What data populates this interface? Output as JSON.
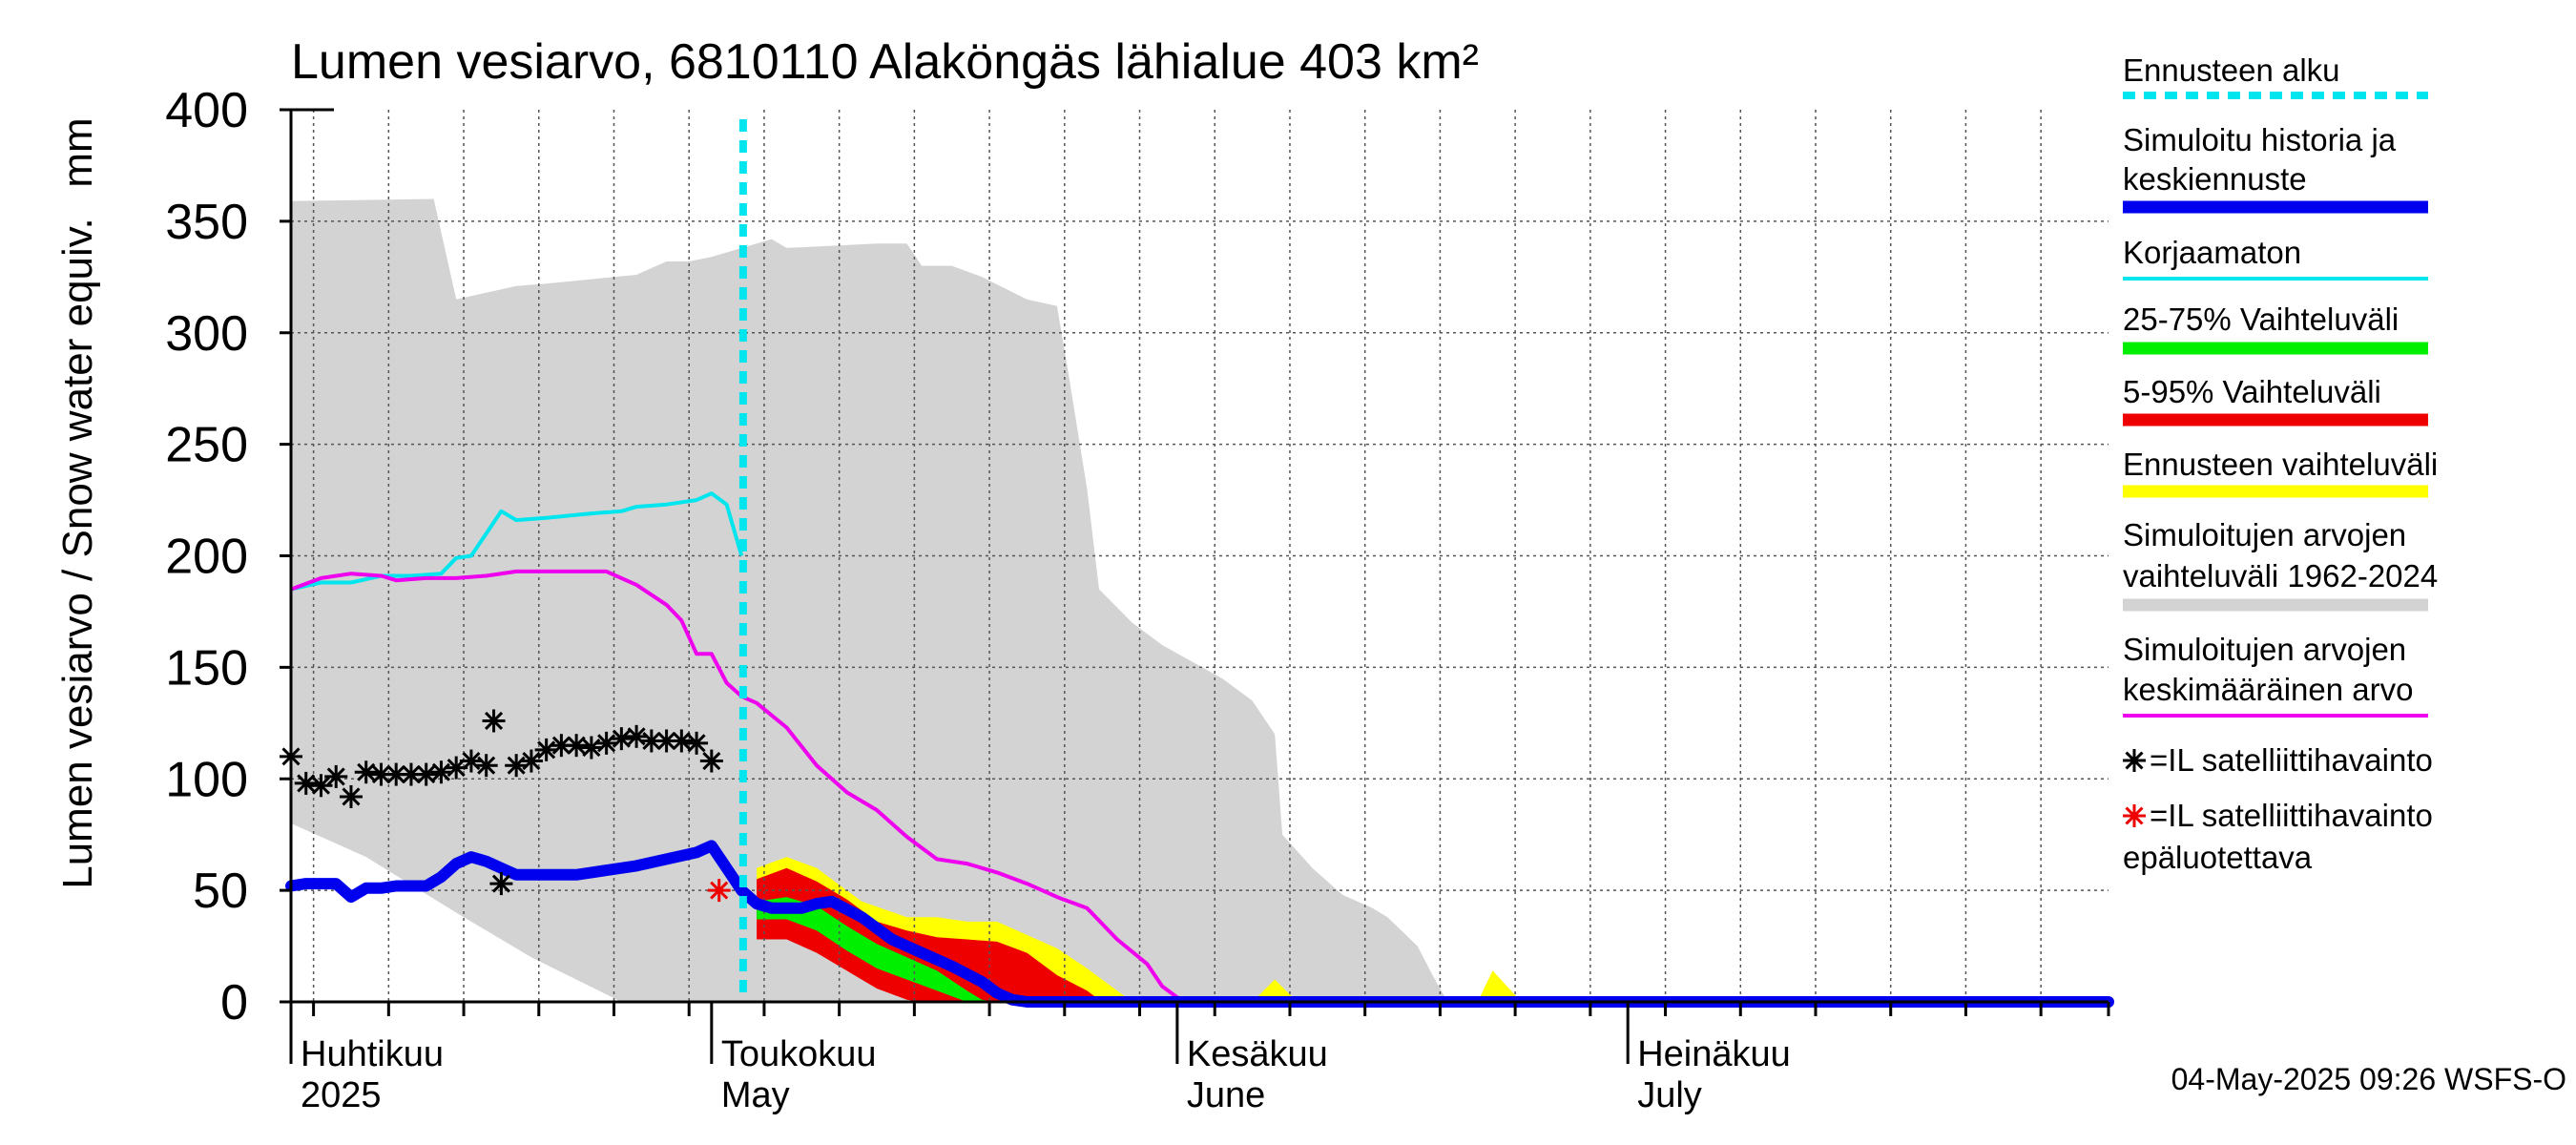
{
  "chart_data": {
    "type": "area",
    "title": "Lumen vesiarvo, 6810110 Alaköngäs lähialue 403 km²",
    "ylabel": "Lumen vesiarvo / Snow water equiv.",
    "yunit": "mm",
    "ylim": [
      0,
      400
    ],
    "yticks": [
      "0",
      "50",
      "100",
      "150",
      "200",
      "250",
      "300",
      "350",
      "400"
    ],
    "xlim_days": [
      0,
      121
    ],
    "month_labels": [
      {
        "day": 0,
        "fi": "Huhtikuu",
        "en": "2025"
      },
      {
        "day": 28,
        "fi": "Toukokuu",
        "en": "May"
      },
      {
        "day": 59,
        "fi": "Kesäkuu",
        "en": "June"
      },
      {
        "day": 89,
        "fi": "Heinäkuu",
        "en": "July"
      }
    ],
    "minor_tick_days": [
      1.5,
      6.5,
      11.5,
      16.5,
      21.5,
      26.5,
      31.5,
      36.5,
      41.5,
      46.5,
      51.5,
      56.5,
      61.5,
      66.5,
      71.5,
      76.5,
      81.5,
      86.5,
      91.5,
      96.5,
      101.5,
      106.5,
      111.5,
      116.5,
      121
    ],
    "forecast_start_day": 30.1,
    "series": {
      "historical_range_upper": [
        [
          0,
          359
        ],
        [
          9.5,
          360
        ],
        [
          11,
          315
        ],
        [
          13,
          318
        ],
        [
          15,
          321
        ],
        [
          17,
          322
        ],
        [
          20,
          324
        ],
        [
          23,
          326
        ],
        [
          25,
          332
        ],
        [
          26.5,
          332
        ],
        [
          28,
          334
        ],
        [
          30,
          338
        ],
        [
          32,
          342
        ],
        [
          33,
          338
        ],
        [
          36,
          339
        ],
        [
          39,
          340
        ],
        [
          41,
          340
        ],
        [
          42,
          330
        ],
        [
          44,
          330
        ],
        [
          46,
          325
        ],
        [
          49,
          315
        ],
        [
          51,
          312
        ],
        [
          51.8,
          280
        ],
        [
          53,
          230
        ],
        [
          53.8,
          185
        ],
        [
          56,
          170
        ],
        [
          58,
          160
        ],
        [
          62,
          145
        ],
        [
          64,
          135
        ],
        [
          65.5,
          120
        ],
        [
          66,
          75
        ],
        [
          68,
          60
        ],
        [
          70,
          48
        ],
        [
          72,
          42
        ],
        [
          73,
          38
        ],
        [
          75,
          25
        ],
        [
          76,
          12
        ],
        [
          77,
          0
        ]
      ],
      "historical_range_lower": [
        [
          0,
          80
        ],
        [
          5,
          65
        ],
        [
          11,
          40
        ],
        [
          16,
          20
        ],
        [
          22,
          0
        ],
        [
          121,
          0
        ]
      ],
      "ennusteen_vaihteluvali_upper": [
        [
          31,
          60
        ],
        [
          33,
          65
        ],
        [
          35,
          60
        ],
        [
          38,
          45
        ],
        [
          41,
          38
        ],
        [
          43,
          38
        ],
        [
          45,
          36
        ],
        [
          47,
          36
        ],
        [
          49,
          30
        ],
        [
          51,
          24
        ],
        [
          53,
          15
        ],
        [
          55,
          5
        ],
        [
          56,
          0
        ]
      ],
      "ennusteen_vaihteluvali_lower": [
        [
          31,
          40
        ],
        [
          34,
          33
        ],
        [
          36,
          25
        ],
        [
          38,
          16
        ],
        [
          40,
          8
        ],
        [
          41,
          5
        ],
        [
          42,
          0
        ],
        [
          56,
          0
        ]
      ],
      "vaihteluvali_5_95_upper": [
        [
          31,
          55
        ],
        [
          33,
          60
        ],
        [
          35,
          54
        ],
        [
          37,
          46
        ],
        [
          39,
          36
        ],
        [
          41,
          32
        ],
        [
          43,
          29
        ],
        [
          45,
          28
        ],
        [
          47,
          27
        ],
        [
          49,
          22
        ],
        [
          51,
          12
        ],
        [
          53,
          5
        ],
        [
          54,
          0
        ]
      ],
      "vaihteluvali_5_95_lower": [
        [
          31,
          28
        ],
        [
          33,
          28
        ],
        [
          35,
          22
        ],
        [
          37,
          14
        ],
        [
          39,
          6
        ],
        [
          41,
          1
        ],
        [
          42,
          0
        ],
        [
          54,
          0
        ]
      ],
      "vaihteluvali_25_75_upper": [
        [
          31,
          45
        ],
        [
          33,
          47
        ],
        [
          35,
          43
        ],
        [
          37,
          34
        ],
        [
          39,
          26
        ],
        [
          41,
          20
        ],
        [
          43,
          14
        ],
        [
          45,
          5
        ],
        [
          46,
          1
        ],
        [
          47,
          0
        ]
      ],
      "vaihteluvali_25_75_lower": [
        [
          31,
          37
        ],
        [
          33,
          37
        ],
        [
          35,
          32
        ],
        [
          37,
          23
        ],
        [
          39,
          15
        ],
        [
          41,
          10
        ],
        [
          43,
          5
        ],
        [
          45,
          0
        ],
        [
          47,
          0
        ]
      ],
      "simuloitu_historia_ja_keskiennuste": [
        [
          0,
          52
        ],
        [
          1,
          53
        ],
        [
          2,
          53
        ],
        [
          3,
          53
        ],
        [
          4,
          47
        ],
        [
          5,
          51
        ],
        [
          6,
          51
        ],
        [
          7,
          52
        ],
        [
          8,
          52
        ],
        [
          9,
          52
        ],
        [
          10,
          56
        ],
        [
          11,
          62
        ],
        [
          12,
          65
        ],
        [
          13,
          63
        ],
        [
          14,
          60
        ],
        [
          15,
          57
        ],
        [
          17,
          57
        ],
        [
          19,
          57
        ],
        [
          21,
          59
        ],
        [
          23,
          61
        ],
        [
          25,
          64
        ],
        [
          27,
          67
        ],
        [
          28,
          70
        ],
        [
          29,
          60
        ],
        [
          30,
          50
        ],
        [
          31,
          44
        ],
        [
          32,
          42
        ],
        [
          34,
          42
        ],
        [
          35,
          44
        ],
        [
          36,
          45
        ],
        [
          38,
          38
        ],
        [
          40,
          28
        ],
        [
          42,
          22
        ],
        [
          44,
          16
        ],
        [
          46,
          9
        ],
        [
          47,
          4
        ],
        [
          48,
          1
        ],
        [
          49,
          0
        ],
        [
          121,
          0
        ]
      ],
      "korjaamaton": [
        [
          0,
          185
        ],
        [
          2,
          188
        ],
        [
          4,
          188
        ],
        [
          6,
          191
        ],
        [
          8,
          191
        ],
        [
          10,
          192
        ],
        [
          11,
          199
        ],
        [
          12,
          200
        ],
        [
          13,
          210
        ],
        [
          14,
          220
        ],
        [
          15,
          216
        ],
        [
          17,
          217
        ],
        [
          20,
          219
        ],
        [
          22,
          220
        ],
        [
          23,
          222
        ],
        [
          25,
          223
        ],
        [
          27,
          225
        ],
        [
          28,
          228
        ],
        [
          29,
          223
        ],
        [
          30,
          200
        ]
      ],
      "simuloitujen_keskimaarainen_arvo": [
        [
          0,
          185
        ],
        [
          2,
          190
        ],
        [
          4,
          192
        ],
        [
          6,
          191
        ],
        [
          7,
          189
        ],
        [
          9,
          190
        ],
        [
          11,
          190
        ],
        [
          13,
          191
        ],
        [
          15,
          193
        ],
        [
          17,
          193
        ],
        [
          19,
          193
        ],
        [
          21,
          193
        ],
        [
          23,
          187
        ],
        [
          25,
          178
        ],
        [
          26,
          171
        ],
        [
          27,
          156
        ],
        [
          28,
          156
        ],
        [
          29,
          143
        ],
        [
          30,
          137
        ],
        [
          31,
          134
        ],
        [
          33,
          123
        ],
        [
          35,
          106
        ],
        [
          37,
          94
        ],
        [
          39,
          86
        ],
        [
          41,
          74
        ],
        [
          43,
          64
        ],
        [
          45,
          62
        ],
        [
          47,
          58
        ],
        [
          49,
          53
        ],
        [
          51,
          47
        ],
        [
          53,
          42
        ],
        [
          55,
          28
        ],
        [
          57,
          17
        ],
        [
          58,
          7
        ],
        [
          59,
          2
        ],
        [
          60,
          0
        ],
        [
          121,
          0
        ]
      ],
      "ennusteen_vaihteluvali_small_bumps": [
        [
          [
            64,
            0
          ],
          [
            65.5,
            10
          ],
          [
            67,
            0
          ]
        ],
        [
          [
            79,
            0
          ],
          [
            80,
            14
          ],
          [
            81.5,
            3
          ],
          [
            82,
            0
          ]
        ]
      ],
      "satelliittihavainto": [
        [
          0,
          110
        ],
        [
          1,
          98
        ],
        [
          2,
          97
        ],
        [
          3,
          101
        ],
        [
          4,
          92
        ],
        [
          5,
          103
        ],
        [
          6,
          102
        ],
        [
          7,
          102
        ],
        [
          8,
          102
        ],
        [
          9,
          102
        ],
        [
          10,
          103
        ],
        [
          11,
          105
        ],
        [
          12,
          108
        ],
        [
          13,
          106
        ],
        [
          13.5,
          126
        ],
        [
          14,
          53
        ],
        [
          15,
          106
        ],
        [
          16,
          108
        ],
        [
          17,
          113
        ],
        [
          18,
          115
        ],
        [
          19,
          115
        ],
        [
          20,
          114
        ],
        [
          21,
          116
        ],
        [
          22,
          118
        ],
        [
          23,
          119
        ],
        [
          24,
          117
        ],
        [
          25,
          117
        ],
        [
          26,
          117
        ],
        [
          27,
          116
        ],
        [
          28,
          108
        ]
      ],
      "satelliittihavainto_epaluotettava": [
        [
          28.5,
          50
        ]
      ]
    },
    "legend": [
      {
        "key": "ennusteen_alku",
        "label": "Ennusteen alku",
        "color": "#00e5ee",
        "style": "dashed"
      },
      {
        "key": "simuloitu",
        "label": "Simuloitu historia ja",
        "label2": "keskiennuste",
        "color": "#0000ee",
        "style": "thick"
      },
      {
        "key": "korjaamaton",
        "label": "Korjaamaton",
        "color": "#00e5ee",
        "style": "line"
      },
      {
        "key": "v25_75",
        "label": "25-75% Vaihteluväli",
        "color": "#00ee00",
        "style": "thick"
      },
      {
        "key": "v5_95",
        "label": "5-95% Vaihteluväli",
        "color": "#ee0000",
        "style": "thick"
      },
      {
        "key": "ennusteen_vaihteluvali",
        "label": "Ennusteen vaihteluväli",
        "color": "#ffff00",
        "style": "thick"
      },
      {
        "key": "hist_range",
        "label": "Simuloitujen arvojen",
        "label2": "vaihteluväli 1962-2024",
        "color": "#d3d3d3",
        "style": "thick"
      },
      {
        "key": "mean",
        "label": "Simuloitujen arvojen",
        "label2": "keskimääräinen arvo",
        "color": "#ee00ee",
        "style": "line"
      },
      {
        "key": "sat",
        "label": "=IL satelliittihavainto",
        "color": "#000000",
        "style": "star"
      },
      {
        "key": "sat_bad",
        "label": "=IL satelliittihavainto",
        "label2": "epäluotettava",
        "color": "#ee0000",
        "style": "star"
      }
    ],
    "footer": "04-May-2025 09:26 WSFS-O"
  }
}
